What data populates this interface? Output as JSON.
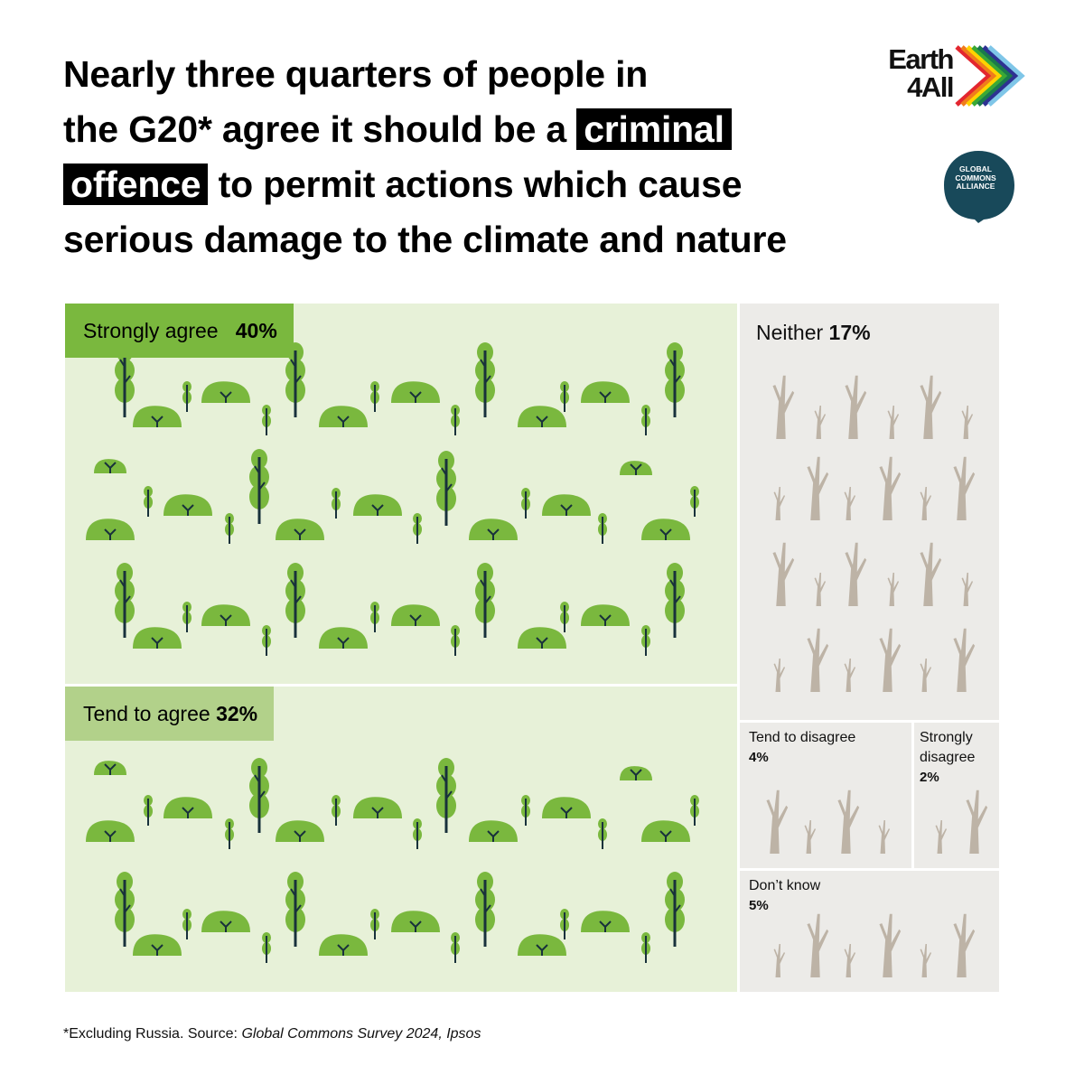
{
  "headline": {
    "line1": "Nearly three quarters of people in",
    "line2_pre": "the G20* agree it should be a",
    "line2_box": "criminal",
    "line3_box": "offence",
    "line3_post": "to permit actions which cause",
    "line4": "serious damage to the climate and nature"
  },
  "logos": {
    "earth4all": {
      "line1": "Earth",
      "line2": "4All",
      "arrow_colors": [
        "#e3262f",
        "#f07c1c",
        "#ffd200",
        "#3aa935",
        "#1a7a4c",
        "#2e3192",
        "#7fc6e8"
      ]
    },
    "gca": {
      "line1": "GLOBAL",
      "line2": "COMMONS",
      "line3": "ALLIANCE",
      "color": "#18495a"
    }
  },
  "colors": {
    "agree_bg": "#e7f1d8",
    "strongly_label": "#7ab83e",
    "tend_label": "#b2d18a",
    "tree_green": "#7ab83e",
    "trunk_dark": "#18313b",
    "neutral_bg": "#ecebe8",
    "dead_tree": "#bdb3a6"
  },
  "chart_data": {
    "type": "treemap",
    "title": "Nearly three quarters of people in the G20* agree it should be a criminal offence to permit actions which cause serious damage to the climate and nature",
    "unit": "%",
    "categories": [
      "Strongly agree",
      "Tend to agree",
      "Neither",
      "Tend to disagree",
      "Strongly disagree",
      "Don’t know"
    ],
    "values": [
      40,
      32,
      17,
      4,
      2,
      5
    ],
    "labels": [
      {
        "name": "Strongly agree",
        "pct": "40%"
      },
      {
        "name": "Tend to agree",
        "pct": "32%"
      },
      {
        "name": "Neither",
        "pct": "17%"
      },
      {
        "name": "Tend to disagree",
        "pct": "4%"
      },
      {
        "name": "Strongly disagree",
        "pct": "2%"
      },
      {
        "name": "Don’t know",
        "pct": "5%"
      }
    ]
  },
  "footnote": {
    "pre": "*Excluding Russia. Source: ",
    "source": "Global Commons Survey 2024, Ipsos"
  }
}
